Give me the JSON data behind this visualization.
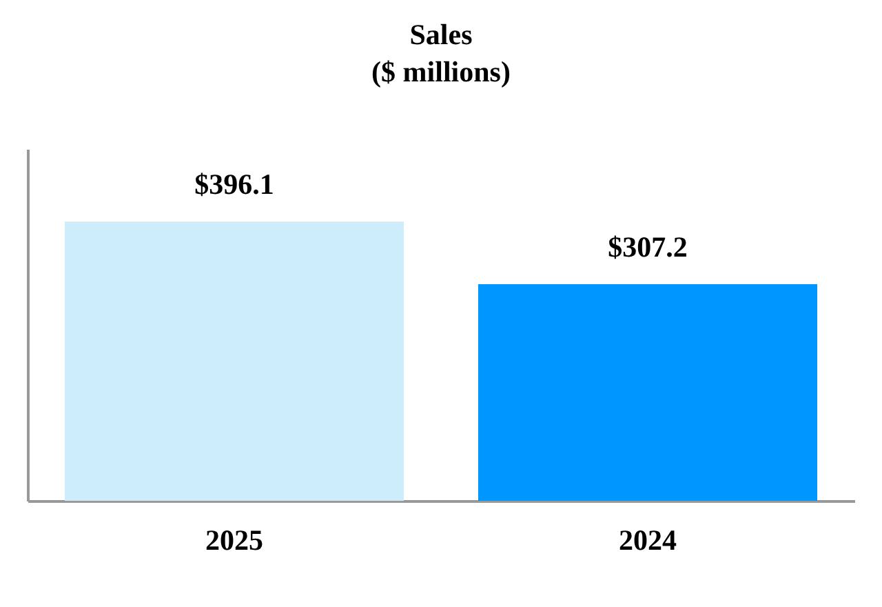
{
  "chart_data": {
    "type": "bar",
    "title": "Sales",
    "subtitle": "($ millions)",
    "categories": [
      "2025",
      "2024"
    ],
    "values": [
      396.1,
      307.2
    ],
    "colors": [
      "#cdedfd",
      "#0096ff"
    ],
    "value_labels": [
      "$396.1",
      "$307.2"
    ],
    "grid": false
  }
}
